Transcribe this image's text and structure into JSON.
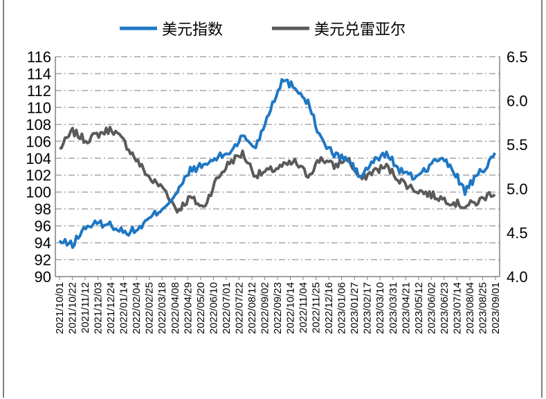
{
  "chart_data": {
    "type": "line",
    "legend": {
      "placement": "top",
      "entries": [
        "美元指数",
        "美元兑雷亚尔"
      ]
    },
    "colors": {
      "usd_index": "#1f77c4",
      "usd_brl": "#5a5a5a",
      "grid": "#a6a6a6",
      "axis": "#808080"
    },
    "grid": true,
    "x_axis": {
      "start": "2021/10/01",
      "end": "2023/09/01",
      "tick_labels": [
        "2021/10/01",
        "2021/10/22",
        "2021/11/12",
        "2021/12/03",
        "2021/12/24",
        "2022/01/14",
        "2022/02/04",
        "2022/02/25",
        "2022/03/18",
        "2022/04/08",
        "2022/04/29",
        "2022/05/20",
        "2022/06/10",
        "2022/07/01",
        "2022/07/22",
        "2022/08/12",
        "2022/09/02",
        "2022/09/23",
        "2022/10/14",
        "2022/11/04",
        "2022/11/25",
        "2022/12/16",
        "2023/01/06",
        "2023/01/27",
        "2023/02/17",
        "2023/03/10",
        "2023/03/31",
        "2023/04/21",
        "2023/05/12",
        "2023/06/02",
        "2023/06/23",
        "2023/07/14",
        "2023/08/04",
        "2023/08/25",
        "2023/09/01"
      ]
    },
    "y_left": {
      "min": 90,
      "max": 116,
      "step": 2,
      "ticks": [
        "90",
        "92",
        "94",
        "96",
        "98",
        "100",
        "102",
        "104",
        "106",
        "108",
        "110",
        "112",
        "114",
        "116"
      ]
    },
    "y_right": {
      "min": 4.0,
      "max": 6.5,
      "step": 0.5,
      "ticks": [
        "4.0",
        "4.5",
        "5.0",
        "5.5",
        "6.0",
        "6.5"
      ]
    },
    "series": [
      {
        "name": "美元指数",
        "axis": "left",
        "x": [
          "2021/10/01",
          "2021/10/22",
          "2021/11/12",
          "2021/12/03",
          "2021/12/24",
          "2022/01/14",
          "2022/02/04",
          "2022/02/25",
          "2022/03/18",
          "2022/04/08",
          "2022/04/29",
          "2022/05/20",
          "2022/06/10",
          "2022/07/01",
          "2022/07/22",
          "2022/08/12",
          "2022/09/02",
          "2022/09/23",
          "2022/10/14",
          "2022/11/04",
          "2022/11/25",
          "2022/12/16",
          "2023/01/06",
          "2023/01/27",
          "2023/02/17",
          "2023/03/10",
          "2023/03/31",
          "2023/04/21",
          "2023/05/12",
          "2023/06/02",
          "2023/06/23",
          "2023/07/14",
          "2023/08/04",
          "2023/08/25",
          "2023/09/01"
        ],
        "values": [
          94.1,
          93.8,
          95.9,
          96.3,
          96.1,
          95.2,
          95.6,
          97.0,
          98.3,
          99.9,
          102.6,
          103.1,
          104.0,
          104.7,
          106.6,
          105.3,
          109.4,
          113.2,
          112.5,
          110.6,
          106.2,
          104.4,
          103.9,
          101.8,
          103.6,
          104.6,
          102.6,
          101.7,
          102.7,
          104.0,
          102.9,
          100.1,
          102.0,
          103.7,
          104.6
        ]
      },
      {
        "name": "美元兑雷亚尔",
        "axis": "right",
        "x": [
          "2021/10/01",
          "2021/10/22",
          "2021/11/12",
          "2021/12/03",
          "2021/12/24",
          "2022/01/14",
          "2022/02/04",
          "2022/02/25",
          "2022/03/18",
          "2022/04/08",
          "2022/04/29",
          "2022/05/20",
          "2022/06/10",
          "2022/07/01",
          "2022/07/22",
          "2022/08/12",
          "2022/09/02",
          "2022/09/23",
          "2022/10/14",
          "2022/11/04",
          "2022/11/25",
          "2022/12/16",
          "2023/01/06",
          "2023/01/27",
          "2023/02/17",
          "2023/03/10",
          "2023/03/31",
          "2023/04/21",
          "2023/05/12",
          "2023/06/02",
          "2023/06/23",
          "2023/07/14",
          "2023/08/04",
          "2023/08/25",
          "2023/09/01"
        ],
        "values": [
          5.45,
          5.65,
          5.55,
          5.62,
          5.68,
          5.52,
          5.3,
          5.1,
          5.0,
          4.75,
          4.9,
          4.78,
          5.1,
          5.3,
          5.4,
          5.15,
          5.2,
          5.25,
          5.3,
          5.15,
          5.35,
          5.25,
          5.35,
          5.1,
          5.2,
          5.25,
          5.1,
          5.0,
          4.95,
          4.9,
          4.85,
          4.8,
          4.85,
          4.95,
          4.95
        ]
      }
    ]
  }
}
